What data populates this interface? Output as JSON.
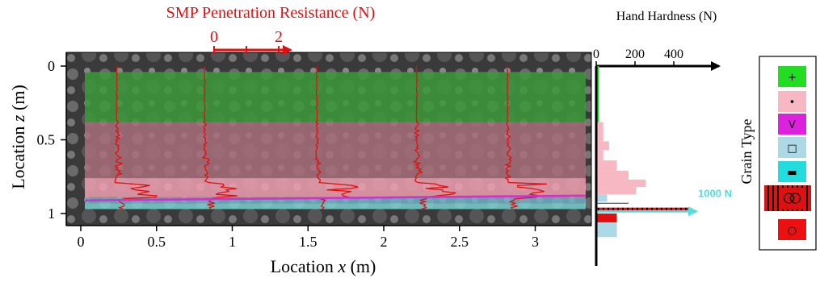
{
  "chart_data": [
    {
      "type": "area",
      "title": "SMP Penetration Resistance (N)",
      "xlabel": "Location x (m)",
      "ylabel": "Location z (m)",
      "xlim": [
        -0.1,
        3.4
      ],
      "ylim": [
        1.0,
        0.0
      ],
      "x_ticks": [
        "0",
        "0.5",
        "1",
        "1.5",
        "2",
        "2.5",
        "3"
      ],
      "y_ticks": [
        "0",
        "0.5",
        "1"
      ],
      "smp_scale": {
        "ticks": [
          "0",
          "2"
        ],
        "range": [
          0,
          2
        ]
      },
      "smp_profile_positions_x": [
        0.3,
        0.88,
        1.62,
        2.28,
        2.88
      ],
      "layers": [
        {
          "z_top": 0.04,
          "z_bottom": 0.38,
          "color": "#3c9a3c",
          "grain": "+"
        },
        {
          "z_top": 0.38,
          "z_bottom": 0.76,
          "color": "#a86f7a",
          "grain": "•"
        },
        {
          "z_top": 0.76,
          "z_bottom": 0.89,
          "color": "#f0a0b0",
          "grain": "•"
        },
        {
          "z_top": 0.89,
          "z_bottom": 0.93,
          "color": "#6fb0c8",
          "grain": "□"
        },
        {
          "z_top": 0.93,
          "z_bottom": 0.97,
          "color": "#7ad0d0",
          "grain": "□"
        }
      ],
      "weak_layer_line": {
        "z": 0.9,
        "color": "#cc33cc"
      }
    },
    {
      "type": "bar",
      "title": "Hand Hardness (N)",
      "x_ticks": [
        "0",
        "200",
        "400"
      ],
      "xlim": [
        0,
        550
      ],
      "annotation": "1000 N",
      "bars": [
        {
          "z_top": 0.0,
          "z_bottom": 0.38,
          "value": 8,
          "color": "#22dd22"
        },
        {
          "z_top": 0.38,
          "z_bottom": 0.51,
          "value": 30,
          "color": "#f7b8c4"
        },
        {
          "z_top": 0.51,
          "z_bottom": 0.57,
          "value": 60,
          "color": "#f7b8c4"
        },
        {
          "z_top": 0.57,
          "z_bottom": 0.64,
          "value": 30,
          "color": "#f7b8c4"
        },
        {
          "z_top": 0.64,
          "z_bottom": 0.71,
          "value": 100,
          "color": "#f7b8c4"
        },
        {
          "z_top": 0.71,
          "z_bottom": 0.77,
          "value": 160,
          "color": "#f7b8c4"
        },
        {
          "z_top": 0.77,
          "z_bottom": 0.82,
          "value": 250,
          "color": "#f7b8c4"
        },
        {
          "z_top": 0.82,
          "z_bottom": 0.87,
          "value": 200,
          "color": "#f7b8c4"
        },
        {
          "z_top": 0.87,
          "z_bottom": 0.92,
          "value": 50,
          "color": "#add8e6"
        },
        {
          "z_top": 0.96,
          "z_bottom": 0.98,
          "value": 480,
          "color": "#e01010"
        },
        {
          "z_top": 1.0,
          "z_bottom": 1.06,
          "value": 100,
          "color": "#e01010"
        },
        {
          "z_top": 1.06,
          "z_bottom": 1.16,
          "value": 100,
          "color": "#add8e6"
        }
      ]
    }
  ],
  "legend": {
    "title": "Grain Type",
    "items": [
      {
        "symbol": "+",
        "color": "#22dd22"
      },
      {
        "symbol": "•",
        "color": "#f7b8c4"
      },
      {
        "symbol": "V",
        "color": "#dd22dd"
      },
      {
        "symbol": "□",
        "color": "#add8e6"
      },
      {
        "symbol": "▬",
        "color": "#22dddd"
      },
      {
        "symbol": "◎",
        "color": "#e01010"
      },
      {
        "symbol": "○",
        "color": "#ee1010"
      }
    ]
  }
}
